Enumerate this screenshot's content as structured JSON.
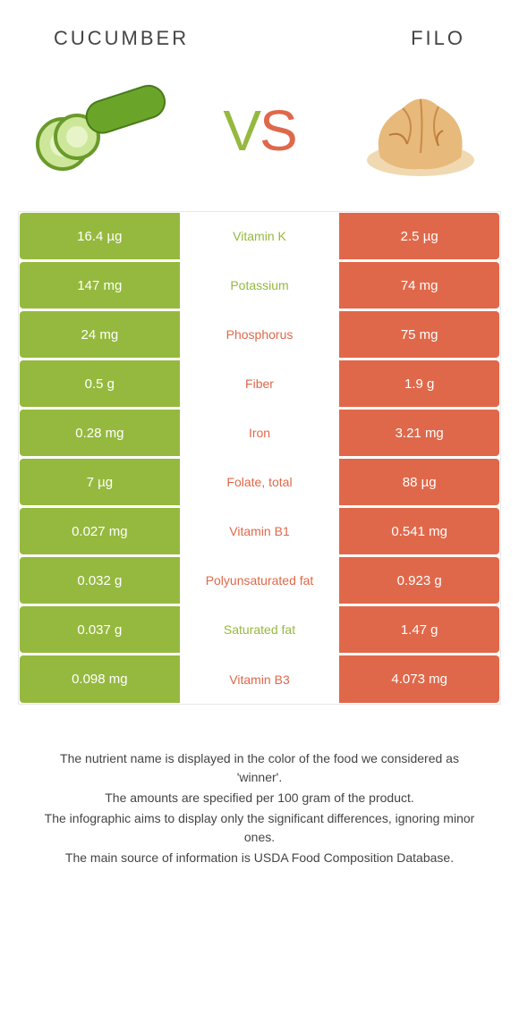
{
  "header": {
    "left": "CUCUMBER",
    "right": "FILO"
  },
  "vs": {
    "v": "V",
    "s": "S"
  },
  "colors": {
    "left": "#95b93e",
    "right": "#e0684a",
    "bg": "#ffffff",
    "text": "#444"
  },
  "rows": [
    {
      "left": "16.4 µg",
      "mid": "Vitamin K",
      "right": "2.5 µg",
      "winner": "left"
    },
    {
      "left": "147 mg",
      "mid": "Potassium",
      "right": "74 mg",
      "winner": "left"
    },
    {
      "left": "24 mg",
      "mid": "Phosphorus",
      "right": "75 mg",
      "winner": "right"
    },
    {
      "left": "0.5 g",
      "mid": "Fiber",
      "right": "1.9 g",
      "winner": "right"
    },
    {
      "left": "0.28 mg",
      "mid": "Iron",
      "right": "3.21 mg",
      "winner": "right"
    },
    {
      "left": "7 µg",
      "mid": "Folate, total",
      "right": "88 µg",
      "winner": "right"
    },
    {
      "left": "0.027 mg",
      "mid": "Vitamin B1",
      "right": "0.541 mg",
      "winner": "right"
    },
    {
      "left": "0.032 g",
      "mid": "Polyunsaturated fat",
      "right": "0.923 g",
      "winner": "right"
    },
    {
      "left": "0.037 g",
      "mid": "Saturated fat",
      "right": "1.47 g",
      "winner": "left"
    },
    {
      "left": "0.098 mg",
      "mid": "Vitamin B3",
      "right": "4.073 mg",
      "winner": "right"
    }
  ],
  "footer": [
    "The nutrient name is displayed in the color of the food we considered as 'winner'.",
    "The amounts are specified per 100 gram of the product.",
    "The infographic aims to display only the significant differences, ignoring minor ones.",
    "The main source of information is USDA Food Composition Database."
  ]
}
